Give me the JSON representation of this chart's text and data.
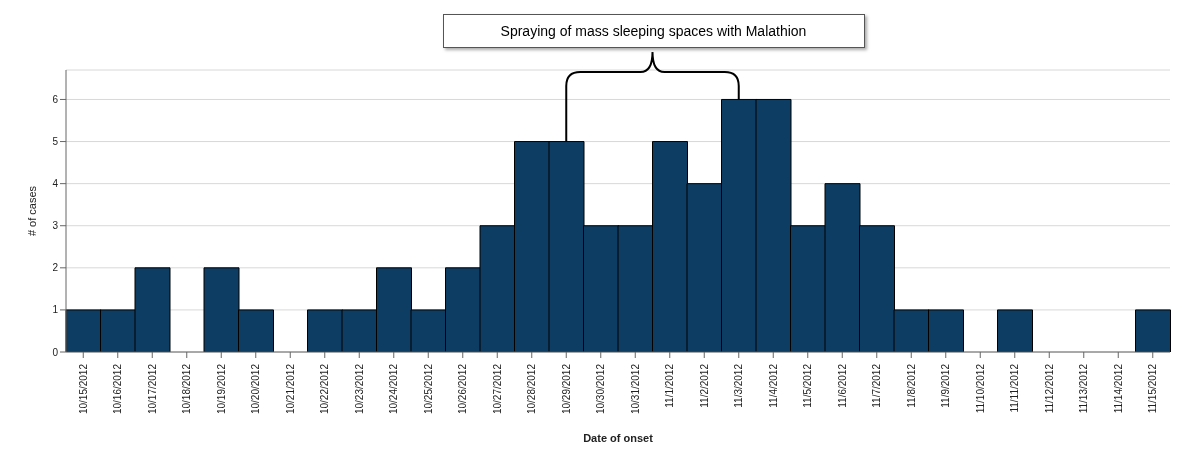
{
  "chart_data": {
    "type": "bar",
    "xlabel": "Date of onset",
    "ylabel": "# of cases",
    "categories": [
      "10/15/2012",
      "10/16/2012",
      "10/17/2012",
      "10/18/2012",
      "10/19/2012",
      "10/20/2012",
      "10/21/2012",
      "10/22/2012",
      "10/23/2012",
      "10/24/2012",
      "10/25/2012",
      "10/26/2012",
      "10/27/2012",
      "10/28/2012",
      "10/29/2012",
      "10/30/2012",
      "10/31/2012",
      "11/1/2012",
      "11/2/2012",
      "11/3/2012",
      "11/4/2012",
      "11/5/2012",
      "11/6/2012",
      "11/7/2012",
      "11/8/2012",
      "11/9/2012",
      "11/10/2012",
      "11/11/2012",
      "11/12/2012",
      "11/13/2012",
      "11/14/2012",
      "11/15/2012"
    ],
    "values": [
      1,
      1,
      2,
      0,
      2,
      1,
      0,
      1,
      1,
      2,
      1,
      2,
      3,
      5,
      5,
      3,
      3,
      5,
      4,
      6,
      6,
      3,
      4,
      3,
      1,
      1,
      0,
      1,
      0,
      0,
      0,
      1
    ],
    "color": "#0e3d63",
    "ylim": [
      0,
      6.7
    ],
    "yticks": [
      0,
      1,
      2,
      3,
      4,
      5,
      6
    ],
    "grid": "y",
    "annotations": [
      "Spraying of mass sleeping spaces with Malathion"
    ]
  }
}
